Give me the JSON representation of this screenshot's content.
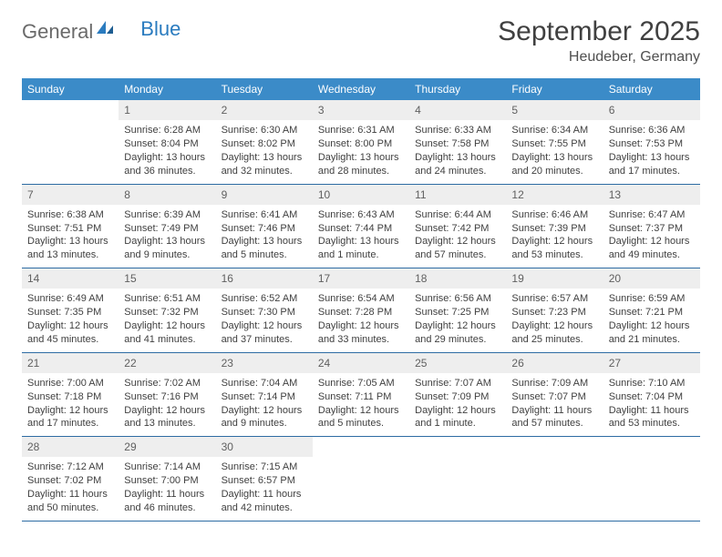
{
  "logo": {
    "text_general": "General",
    "text_blue": "Blue"
  },
  "title": "September 2025",
  "location": "Heudeber, Germany",
  "colors": {
    "header_bg": "#3b8bc8",
    "header_text": "#ffffff",
    "daynum_bg": "#eeeeee",
    "daynum_text": "#606060",
    "border": "#2d6ca3",
    "body_text": "#404040"
  },
  "day_names": [
    "Sunday",
    "Monday",
    "Tuesday",
    "Wednesday",
    "Thursday",
    "Friday",
    "Saturday"
  ],
  "weeks": [
    [
      null,
      {
        "n": "1",
        "sr": "Sunrise: 6:28 AM",
        "ss": "Sunset: 8:04 PM",
        "dl": "Daylight: 13 hours and 36 minutes."
      },
      {
        "n": "2",
        "sr": "Sunrise: 6:30 AM",
        "ss": "Sunset: 8:02 PM",
        "dl": "Daylight: 13 hours and 32 minutes."
      },
      {
        "n": "3",
        "sr": "Sunrise: 6:31 AM",
        "ss": "Sunset: 8:00 PM",
        "dl": "Daylight: 13 hours and 28 minutes."
      },
      {
        "n": "4",
        "sr": "Sunrise: 6:33 AM",
        "ss": "Sunset: 7:58 PM",
        "dl": "Daylight: 13 hours and 24 minutes."
      },
      {
        "n": "5",
        "sr": "Sunrise: 6:34 AM",
        "ss": "Sunset: 7:55 PM",
        "dl": "Daylight: 13 hours and 20 minutes."
      },
      {
        "n": "6",
        "sr": "Sunrise: 6:36 AM",
        "ss": "Sunset: 7:53 PM",
        "dl": "Daylight: 13 hours and 17 minutes."
      }
    ],
    [
      {
        "n": "7",
        "sr": "Sunrise: 6:38 AM",
        "ss": "Sunset: 7:51 PM",
        "dl": "Daylight: 13 hours and 13 minutes."
      },
      {
        "n": "8",
        "sr": "Sunrise: 6:39 AM",
        "ss": "Sunset: 7:49 PM",
        "dl": "Daylight: 13 hours and 9 minutes."
      },
      {
        "n": "9",
        "sr": "Sunrise: 6:41 AM",
        "ss": "Sunset: 7:46 PM",
        "dl": "Daylight: 13 hours and 5 minutes."
      },
      {
        "n": "10",
        "sr": "Sunrise: 6:43 AM",
        "ss": "Sunset: 7:44 PM",
        "dl": "Daylight: 13 hours and 1 minute."
      },
      {
        "n": "11",
        "sr": "Sunrise: 6:44 AM",
        "ss": "Sunset: 7:42 PM",
        "dl": "Daylight: 12 hours and 57 minutes."
      },
      {
        "n": "12",
        "sr": "Sunrise: 6:46 AM",
        "ss": "Sunset: 7:39 PM",
        "dl": "Daylight: 12 hours and 53 minutes."
      },
      {
        "n": "13",
        "sr": "Sunrise: 6:47 AM",
        "ss": "Sunset: 7:37 PM",
        "dl": "Daylight: 12 hours and 49 minutes."
      }
    ],
    [
      {
        "n": "14",
        "sr": "Sunrise: 6:49 AM",
        "ss": "Sunset: 7:35 PM",
        "dl": "Daylight: 12 hours and 45 minutes."
      },
      {
        "n": "15",
        "sr": "Sunrise: 6:51 AM",
        "ss": "Sunset: 7:32 PM",
        "dl": "Daylight: 12 hours and 41 minutes."
      },
      {
        "n": "16",
        "sr": "Sunrise: 6:52 AM",
        "ss": "Sunset: 7:30 PM",
        "dl": "Daylight: 12 hours and 37 minutes."
      },
      {
        "n": "17",
        "sr": "Sunrise: 6:54 AM",
        "ss": "Sunset: 7:28 PM",
        "dl": "Daylight: 12 hours and 33 minutes."
      },
      {
        "n": "18",
        "sr": "Sunrise: 6:56 AM",
        "ss": "Sunset: 7:25 PM",
        "dl": "Daylight: 12 hours and 29 minutes."
      },
      {
        "n": "19",
        "sr": "Sunrise: 6:57 AM",
        "ss": "Sunset: 7:23 PM",
        "dl": "Daylight: 12 hours and 25 minutes."
      },
      {
        "n": "20",
        "sr": "Sunrise: 6:59 AM",
        "ss": "Sunset: 7:21 PM",
        "dl": "Daylight: 12 hours and 21 minutes."
      }
    ],
    [
      {
        "n": "21",
        "sr": "Sunrise: 7:00 AM",
        "ss": "Sunset: 7:18 PM",
        "dl": "Daylight: 12 hours and 17 minutes."
      },
      {
        "n": "22",
        "sr": "Sunrise: 7:02 AM",
        "ss": "Sunset: 7:16 PM",
        "dl": "Daylight: 12 hours and 13 minutes."
      },
      {
        "n": "23",
        "sr": "Sunrise: 7:04 AM",
        "ss": "Sunset: 7:14 PM",
        "dl": "Daylight: 12 hours and 9 minutes."
      },
      {
        "n": "24",
        "sr": "Sunrise: 7:05 AM",
        "ss": "Sunset: 7:11 PM",
        "dl": "Daylight: 12 hours and 5 minutes."
      },
      {
        "n": "25",
        "sr": "Sunrise: 7:07 AM",
        "ss": "Sunset: 7:09 PM",
        "dl": "Daylight: 12 hours and 1 minute."
      },
      {
        "n": "26",
        "sr": "Sunrise: 7:09 AM",
        "ss": "Sunset: 7:07 PM",
        "dl": "Daylight: 11 hours and 57 minutes."
      },
      {
        "n": "27",
        "sr": "Sunrise: 7:10 AM",
        "ss": "Sunset: 7:04 PM",
        "dl": "Daylight: 11 hours and 53 minutes."
      }
    ],
    [
      {
        "n": "28",
        "sr": "Sunrise: 7:12 AM",
        "ss": "Sunset: 7:02 PM",
        "dl": "Daylight: 11 hours and 50 minutes."
      },
      {
        "n": "29",
        "sr": "Sunrise: 7:14 AM",
        "ss": "Sunset: 7:00 PM",
        "dl": "Daylight: 11 hours and 46 minutes."
      },
      {
        "n": "30",
        "sr": "Sunrise: 7:15 AM",
        "ss": "Sunset: 6:57 PM",
        "dl": "Daylight: 11 hours and 42 minutes."
      },
      null,
      null,
      null,
      null
    ]
  ]
}
